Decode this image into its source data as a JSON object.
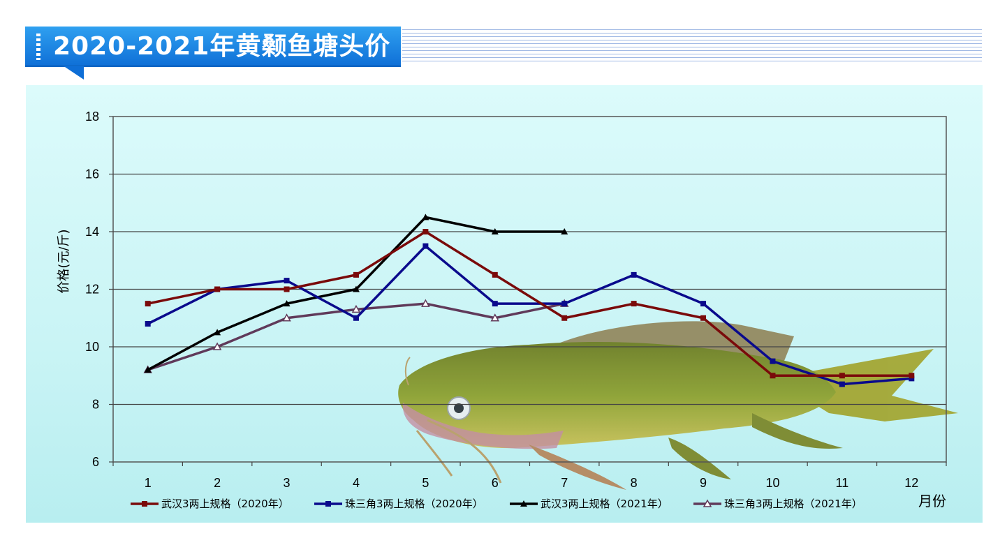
{
  "header": {
    "title": "2020-2021年黄颡鱼塘头价"
  },
  "chart_data": {
    "type": "line",
    "title": "",
    "xlabel": "月份",
    "ylabel": "价格(元/斤)",
    "categories": [
      "1",
      "2",
      "3",
      "4",
      "5",
      "6",
      "7",
      "8",
      "9",
      "10",
      "11",
      "12"
    ],
    "ylim": [
      6,
      18
    ],
    "yticks": [
      "6",
      "8",
      "10",
      "12",
      "14",
      "16",
      "18"
    ],
    "grid": true,
    "legend_position": "bottom",
    "series": [
      {
        "name": "武汉3两上规格（2020年）",
        "color": "#7a0a0a",
        "marker": "square",
        "values": [
          11.5,
          12,
          12,
          12.5,
          14,
          12.5,
          11,
          11.5,
          11,
          9,
          9,
          9
        ]
      },
      {
        "name": "珠三角3两上规格（2020年）",
        "color": "#0a0a8c",
        "marker": "square",
        "values": [
          10.8,
          12,
          12.3,
          11,
          13.5,
          11.5,
          11.5,
          12.5,
          11.5,
          9.5,
          8.7,
          8.9
        ]
      },
      {
        "name": "武汉3两上规格（2021年）",
        "color": "#000000",
        "marker": "triangle",
        "values": [
          9.2,
          10.5,
          11.5,
          12,
          14.5,
          14,
          14,
          null,
          null,
          null,
          null,
          null
        ]
      },
      {
        "name": "珠三角3两上规格（2021年）",
        "color": "#603a5a",
        "marker": "triangle-open",
        "values": [
          9.2,
          10,
          11,
          11.3,
          11.5,
          11,
          11.5,
          null,
          null,
          null,
          null,
          null
        ]
      }
    ]
  }
}
